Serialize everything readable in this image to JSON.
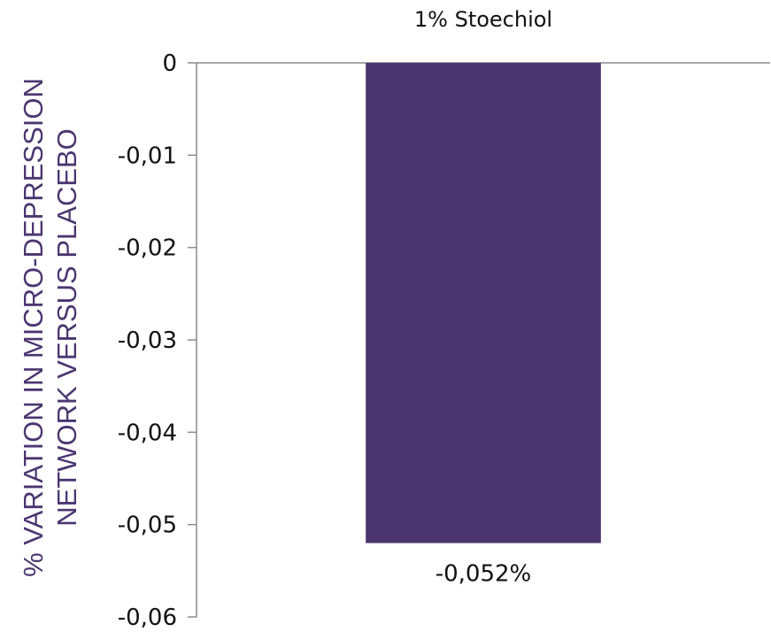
{
  "chart_data": {
    "type": "bar",
    "categories": [
      "1% Stoechiol"
    ],
    "values": [
      -0.052
    ],
    "data_labels": [
      "-0,052%"
    ],
    "ylabel_lines": [
      "% VARIATION IN MICRO-DEPRESSION",
      "NETWORK VERSUS PLACEBO"
    ],
    "ylim": [
      -0.06,
      0
    ],
    "yticks": [
      0,
      -0.01,
      -0.02,
      -0.03,
      -0.04,
      -0.05,
      -0.06
    ],
    "ytick_labels": [
      "0",
      "-0,01",
      "-0,02",
      "-0,03",
      "-0,04",
      "-0,05",
      "-0,06"
    ],
    "grid": false,
    "legend": "none",
    "bar_color": "#4b3570",
    "axis_color": "#8c8c8c"
  }
}
